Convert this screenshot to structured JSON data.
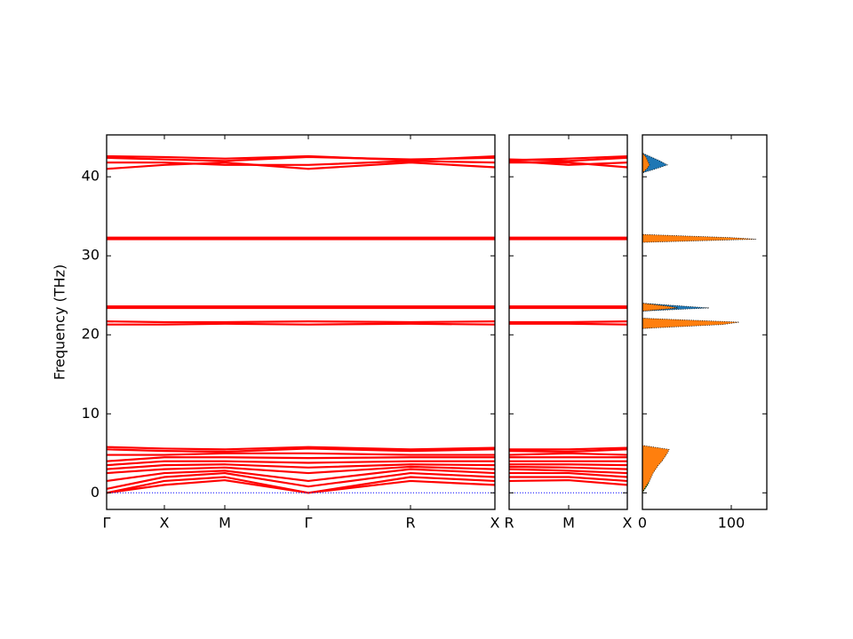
{
  "chart_data": [
    {
      "type": "line",
      "ylabel": "Frequency (THz)",
      "color": "#ff0000",
      "x": [
        0,
        0.65,
        1.33,
        2.27,
        3.42,
        4.37
      ],
      "xlim": [
        0,
        4.37
      ],
      "xticks": [
        {
          "value": 0,
          "label": "Γ"
        },
        {
          "value": 0.65,
          "label": "X"
        },
        {
          "value": 1.33,
          "label": "M"
        },
        {
          "value": 2.27,
          "label": "Γ"
        },
        {
          "value": 3.42,
          "label": "R"
        },
        {
          "value": 4.37,
          "label": "X"
        }
      ],
      "ylim": [
        -2.1,
        45.3
      ],
      "yticks": [
        0,
        10,
        20,
        30,
        40
      ],
      "series": [
        {
          "values": [
            0,
            1.0,
            1.6,
            0,
            1.5,
            1.0
          ]
        },
        {
          "values": [
            0,
            1.5,
            2.0,
            0,
            2.0,
            1.5
          ]
        },
        {
          "values": [
            0.5,
            2.0,
            2.5,
            0.8,
            2.5,
            2.0
          ]
        },
        {
          "values": [
            1.5,
            2.5,
            2.8,
            1.5,
            3.0,
            2.5
          ]
        },
        {
          "values": [
            2.5,
            3.0,
            3.2,
            2.5,
            3.3,
            3.0
          ]
        },
        {
          "values": [
            3.0,
            3.5,
            3.6,
            3.2,
            3.6,
            3.5
          ]
        },
        {
          "values": [
            3.5,
            4.0,
            4.0,
            3.8,
            4.0,
            4.0
          ]
        },
        {
          "values": [
            4.0,
            4.5,
            4.5,
            4.4,
            4.5,
            4.5
          ]
        },
        {
          "values": [
            4.8,
            4.8,
            5.0,
            5.0,
            4.8,
            4.8
          ]
        },
        {
          "values": [
            5.5,
            5.3,
            5.2,
            5.6,
            5.3,
            5.5
          ]
        },
        {
          "values": [
            5.8,
            5.6,
            5.5,
            5.8,
            5.5,
            5.7
          ]
        },
        {
          "values": [
            21.3,
            21.3,
            21.4,
            21.3,
            21.4,
            21.3
          ]
        },
        {
          "values": [
            21.7,
            21.6,
            21.6,
            21.7,
            21.6,
            21.7
          ]
        },
        {
          "values": [
            23.4,
            23.4,
            23.4,
            23.4,
            23.4,
            23.4
          ]
        },
        {
          "values": [
            23.6,
            23.6,
            23.6,
            23.6,
            23.6,
            23.6
          ]
        },
        {
          "values": [
            32.1,
            32.1,
            32.1,
            32.1,
            32.1,
            32.1
          ]
        },
        {
          "values": [
            32.3,
            32.3,
            32.3,
            32.3,
            32.3,
            32.3
          ]
        },
        {
          "values": [
            41.0,
            41.5,
            41.8,
            41.0,
            41.8,
            41.2
          ]
        },
        {
          "values": [
            41.8,
            41.8,
            41.5,
            41.5,
            42.0,
            41.8
          ]
        },
        {
          "values": [
            42.4,
            42.2,
            42.0,
            42.5,
            42.2,
            42.4
          ]
        },
        {
          "values": [
            42.6,
            42.5,
            42.3,
            42.6,
            42.1,
            42.6
          ]
        },
        {
          "color": "#0000ff",
          "linestyle": "dotted",
          "values": [
            0,
            0,
            0,
            0,
            0,
            0
          ]
        }
      ]
    },
    {
      "type": "line",
      "color": "#ff0000",
      "x": [
        0,
        0.67,
        1.33
      ],
      "xlim": [
        0,
        1.33
      ],
      "xticks": [
        {
          "value": 0,
          "label": "R"
        },
        {
          "value": 0.67,
          "label": "M"
        },
        {
          "value": 1.33,
          "label": "X"
        }
      ],
      "series": [
        {
          "values": [
            1.5,
            1.6,
            1.0
          ]
        },
        {
          "values": [
            2.0,
            2.0,
            1.5
          ]
        },
        {
          "values": [
            2.5,
            2.5,
            2.0
          ]
        },
        {
          "values": [
            3.0,
            2.8,
            2.5
          ]
        },
        {
          "values": [
            3.3,
            3.2,
            3.0
          ]
        },
        {
          "values": [
            3.6,
            3.6,
            3.5
          ]
        },
        {
          "values": [
            4.0,
            4.0,
            4.0
          ]
        },
        {
          "values": [
            4.5,
            4.5,
            4.5
          ]
        },
        {
          "values": [
            4.8,
            5.0,
            4.8
          ]
        },
        {
          "values": [
            5.3,
            5.2,
            5.5
          ]
        },
        {
          "values": [
            5.5,
            5.5,
            5.7
          ]
        },
        {
          "values": [
            21.4,
            21.4,
            21.3
          ]
        },
        {
          "values": [
            21.6,
            21.6,
            21.7
          ]
        },
        {
          "values": [
            23.4,
            23.4,
            23.4
          ]
        },
        {
          "values": [
            23.6,
            23.6,
            23.6
          ]
        },
        {
          "values": [
            32.1,
            32.1,
            32.1
          ]
        },
        {
          "values": [
            32.3,
            32.3,
            32.3
          ]
        },
        {
          "values": [
            41.8,
            41.8,
            41.2
          ]
        },
        {
          "values": [
            42.0,
            41.5,
            41.8
          ]
        },
        {
          "values": [
            42.2,
            42.0,
            42.4
          ]
        },
        {
          "values": [
            42.1,
            42.3,
            42.6
          ]
        },
        {
          "color": "#0000ff",
          "linestyle": "dotted",
          "values": [
            0,
            0,
            0
          ]
        }
      ]
    },
    {
      "type": "area",
      "orientation": "horizontal",
      "y": [
        0,
        0.5,
        1,
        1.5,
        2,
        2.5,
        3,
        3.5,
        4,
        4.5,
        5,
        5.5,
        6,
        20.8,
        21.3,
        21.6,
        22.1,
        23.0,
        23.4,
        23.6,
        24.0,
        31.7,
        32.1,
        32.3,
        32.7,
        40.5,
        41,
        41.5,
        42,
        42.5,
        43
      ],
      "xlim": [
        0,
        140
      ],
      "xticks": [
        0,
        100
      ],
      "series": [
        {
          "color": "#1f77b4",
          "values": [
            0,
            1,
            3,
            5,
            6,
            8,
            10,
            12,
            14,
            15,
            12,
            10,
            0,
            0,
            50,
            60,
            0,
            0,
            75,
            50,
            0,
            0,
            20,
            15,
            0,
            0,
            15,
            28,
            20,
            10,
            0
          ]
        },
        {
          "color": "#2ca02c",
          "values": [
            0,
            3,
            6,
            8,
            5,
            4,
            3,
            2,
            2,
            1,
            1,
            0,
            0,
            0,
            0,
            0,
            0,
            0,
            0,
            0,
            0,
            0,
            0,
            0,
            0,
            0,
            0,
            0,
            0,
            0,
            0
          ]
        },
        {
          "color": "#ff7f0e",
          "values": [
            0,
            2,
            5,
            8,
            10,
            12,
            15,
            18,
            22,
            25,
            28,
            30,
            0,
            0,
            90,
            109,
            0,
            0,
            40,
            30,
            0,
            0,
            128,
            100,
            0,
            0,
            5,
            8,
            6,
            4,
            0
          ]
        }
      ]
    }
  ]
}
